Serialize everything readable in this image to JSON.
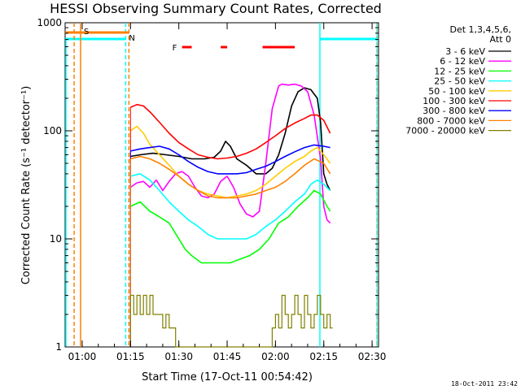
{
  "chart_data": {
    "type": "line",
    "title": "HESSI Observing Summary Count Rates, Corrected",
    "xlabel": "Start Time (17-Oct-11 00:54:42)",
    "ylabel": "Corrected Count Rate (s⁻¹ detector⁻¹)",
    "yscale": "log",
    "ylim": [
      1,
      1000
    ],
    "xlim_minutes": [
      54.7,
      152
    ],
    "x_ticks": [
      {
        "label": "01:00",
        "minute": 60
      },
      {
        "label": "01:15",
        "minute": 75
      },
      {
        "label": "01:30",
        "minute": 90
      },
      {
        "label": "01:45",
        "minute": 105
      },
      {
        "label": "02:00",
        "minute": 120
      },
      {
        "label": "02:15",
        "minute": 135
      },
      {
        "label": "02:30",
        "minute": 150
      }
    ],
    "y_ticks": [
      {
        "label": "1",
        "value": 1
      },
      {
        "label": "10",
        "value": 10
      },
      {
        "label": "100",
        "value": 100
      },
      {
        "label": "1000",
        "value": 1000
      }
    ],
    "legend_title": [
      "Det 1,3,4,5,6,",
      "Att 0"
    ],
    "legend_position": "right",
    "series": [
      {
        "name": "3 - 6 keV",
        "color": "#000000",
        "x": [
          75,
          78,
          82,
          86,
          90,
          94,
          98,
          101,
          103,
          104.5,
          106,
          108,
          111,
          114,
          117,
          119,
          121,
          123,
          125,
          127,
          129,
          131,
          133,
          134,
          135,
          136,
          137
        ],
        "y": [
          58,
          60,
          62,
          60,
          58,
          55,
          55,
          57,
          65,
          80,
          72,
          55,
          48,
          40,
          40,
          45,
          60,
          95,
          170,
          230,
          250,
          240,
          200,
          120,
          40,
          32,
          28
        ]
      },
      {
        "name": "6 - 12 keV",
        "color": "#ff00ff",
        "x": [
          75,
          77,
          79,
          81,
          83,
          85,
          87,
          89,
          91,
          93,
          95,
          97,
          99,
          101,
          103,
          105,
          107,
          109,
          111,
          113,
          115,
          117,
          119,
          121,
          122,
          124,
          126,
          128,
          130,
          132,
          134,
          135,
          136,
          137
        ],
        "y": [
          30,
          33,
          34,
          30,
          35,
          28,
          34,
          40,
          42,
          38,
          30,
          25,
          24,
          26,
          34,
          38,
          30,
          21,
          17,
          16,
          18,
          50,
          160,
          260,
          270,
          265,
          270,
          260,
          230,
          140,
          55,
          20,
          15,
          14
        ]
      },
      {
        "name": "12 - 25 keV",
        "color": "#00ff00",
        "x": [
          75,
          78,
          81,
          84,
          87,
          90,
          92,
          94,
          97,
          100,
          103,
          106,
          109,
          112,
          115,
          118,
          121,
          124,
          127,
          130,
          132,
          134,
          136,
          137
        ],
        "y": [
          20,
          22,
          18,
          16,
          14,
          10,
          8,
          7,
          6,
          6,
          6,
          6,
          6.5,
          7,
          8,
          10,
          14,
          16,
          20,
          24,
          28,
          26,
          20,
          18
        ]
      },
      {
        "name": "25 - 50 keV",
        "color": "#00ffff",
        "x": [
          75,
          78,
          81,
          84,
          87,
          90,
          93,
          96,
          99,
          102,
          105,
          108,
          111,
          114,
          117,
          120,
          123,
          126,
          129,
          131,
          133,
          135,
          137
        ],
        "y": [
          38,
          40,
          35,
          28,
          22,
          18,
          15,
          13,
          11,
          10,
          10,
          10,
          10,
          11,
          13,
          15,
          18,
          22,
          26,
          32,
          35,
          32,
          28
        ]
      },
      {
        "name": "50 - 100 keV",
        "color": "#ffcc00",
        "x": [
          75,
          77,
          79,
          81,
          84,
          87,
          90,
          93,
          96,
          99,
          102,
          105,
          108,
          111,
          114,
          117,
          120,
          123,
          126,
          129,
          131,
          133,
          135,
          137
        ],
        "y": [
          100,
          110,
          95,
          75,
          60,
          48,
          38,
          32,
          28,
          26,
          25,
          24,
          25,
          26,
          28,
          32,
          38,
          45,
          52,
          58,
          65,
          70,
          60,
          50
        ]
      },
      {
        "name": "100 - 300 keV",
        "color": "#ff0000",
        "x": [
          75,
          77,
          79,
          81,
          84,
          87,
          90,
          93,
          96,
          99,
          102,
          105,
          108,
          111,
          114,
          117,
          120,
          123,
          126,
          129,
          131,
          133,
          135,
          137
        ],
        "y": [
          165,
          175,
          170,
          150,
          120,
          95,
          78,
          68,
          60,
          57,
          55,
          56,
          58,
          62,
          68,
          78,
          90,
          105,
          118,
          130,
          140,
          140,
          125,
          95
        ]
      },
      {
        "name": "300 - 800 keV",
        "color": "#0000ff",
        "x": [
          75,
          78,
          81,
          84,
          87,
          90,
          93,
          96,
          99,
          102,
          105,
          108,
          111,
          114,
          117,
          120,
          123,
          126,
          129,
          132,
          135,
          137
        ],
        "y": [
          65,
          68,
          70,
          72,
          68,
          60,
          52,
          46,
          42,
          40,
          40,
          40,
          41,
          44,
          47,
          52,
          58,
          64,
          70,
          74,
          72,
          70
        ]
      },
      {
        "name": "800 - 7000 keV",
        "color": "#ff8000",
        "x": [
          75,
          78,
          81,
          84,
          87,
          90,
          93,
          96,
          99,
          102,
          105,
          108,
          111,
          114,
          117,
          120,
          123,
          126,
          129,
          132,
          135,
          137
        ],
        "y": [
          55,
          58,
          55,
          50,
          44,
          38,
          32,
          28,
          25,
          24,
          24,
          24,
          25,
          26,
          28,
          30,
          34,
          40,
          48,
          55,
          50,
          40
        ]
      },
      {
        "name": "7000 - 20000 keV",
        "color": "#808000",
        "x": [
          75,
          76,
          77,
          78,
          79,
          80,
          81,
          82,
          83,
          85,
          86,
          87,
          89,
          90,
          118,
          119,
          120,
          121,
          122,
          123,
          124,
          125,
          126,
          127,
          128,
          129,
          130,
          131,
          132,
          133,
          134,
          135,
          136,
          137
        ],
        "y": [
          3,
          2,
          3,
          2,
          3,
          2,
          3,
          2,
          2,
          1.5,
          2,
          1.5,
          1,
          1,
          1,
          1.5,
          2,
          1.5,
          3,
          2,
          1.5,
          2,
          3,
          2,
          1.5,
          3,
          2,
          1.5,
          2,
          3,
          2,
          1.5,
          2,
          1.5
        ]
      }
    ],
    "annotations": [
      {
        "label": "F",
        "color": "#ff0000",
        "kind": "flare flag",
        "segments_minutes": [
          [
            91,
            94
          ],
          [
            103,
            105
          ],
          [
            116,
            126
          ]
        ]
      },
      {
        "label": "N",
        "color": "#00cccc",
        "kind": "night",
        "at_minute": 73.5
      },
      {
        "label": "S",
        "color": "#ff8000",
        "kind": "SAA",
        "at_minute": 60.5
      }
    ],
    "timestamp": "18-Oct-2011 23:42"
  }
}
